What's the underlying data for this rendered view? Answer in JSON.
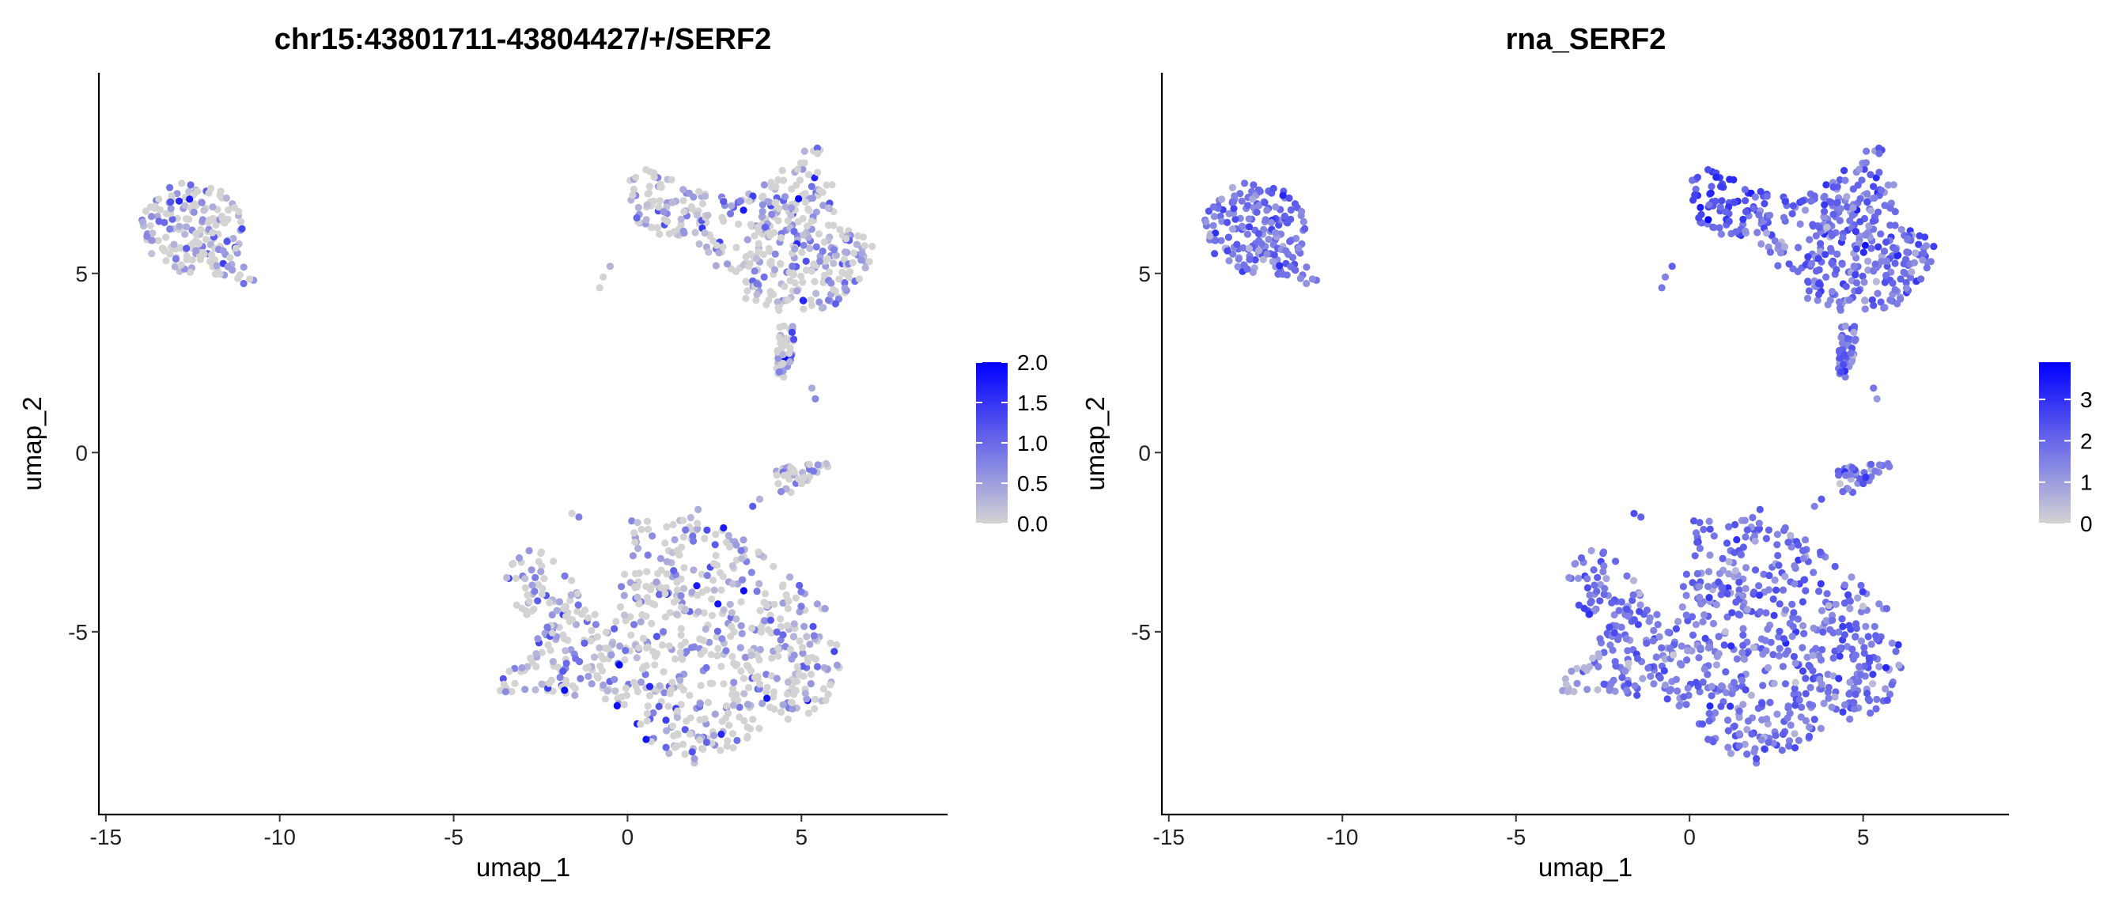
{
  "chart_data": [
    {
      "type": "scatter",
      "title": "chr15:43801711-43804427/+/SERF2",
      "xlabel": "umap_1",
      "ylabel": "umap_2",
      "xlim": [
        -15.2,
        9.2
      ],
      "ylim": [
        -10.1,
        10.6
      ],
      "xticks": [
        -15,
        -10,
        -5,
        0,
        5
      ],
      "xtick_labels": [
        "-15",
        "-10",
        "-5",
        "0",
        "5"
      ],
      "yticks": [
        -5,
        0,
        5
      ],
      "ytick_labels": [
        "-5",
        "0",
        "5"
      ],
      "color_scale": {
        "low": "#d3d3d3",
        "high": "#0000ff",
        "min": 0,
        "max": 2.0
      },
      "legend_ticks": [
        0.0,
        0.5,
        1.0,
        1.5,
        2.0
      ],
      "legend_labels": [
        "0.0",
        "0.5",
        "1.0",
        "1.5",
        "2.0"
      ],
      "legend_position": "right",
      "value_level": "low",
      "grid": false
    },
    {
      "type": "scatter",
      "title": "rna_SERF2",
      "xlabel": "umap_1",
      "ylabel": "umap_2",
      "xlim": [
        -15.2,
        9.2
      ],
      "ylim": [
        -10.1,
        10.6
      ],
      "xticks": [
        -15,
        -10,
        -5,
        0,
        5
      ],
      "xtick_labels": [
        "-15",
        "-10",
        "-5",
        "0",
        "5"
      ],
      "yticks": [
        -5,
        0,
        5
      ],
      "ytick_labels": [
        "-5",
        "0",
        "5"
      ],
      "color_scale": {
        "low": "#d3d3d3",
        "high": "#0000ff",
        "min": 0,
        "max": 3.9
      },
      "legend_ticks": [
        0,
        1,
        2,
        3
      ],
      "legend_labels": [
        "0",
        "1",
        "2",
        "3"
      ],
      "legend_position": "right",
      "value_level": "high",
      "grid": false
    }
  ]
}
